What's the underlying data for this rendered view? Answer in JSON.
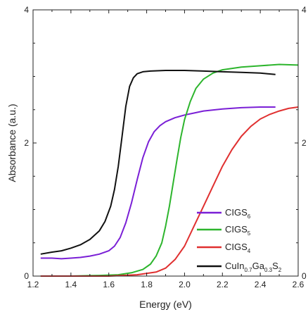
{
  "chart_data": {
    "type": "line",
    "xlabel": "Energy (eV)",
    "ylabel": "Absorbance (a.u.)",
    "xlim": [
      1.2,
      2.6
    ],
    "ylim": [
      0,
      4
    ],
    "x_ticks": [
      "1.2",
      "1.4",
      "1.6",
      "1.8",
      "2.0",
      "2.2",
      "2.4",
      "2.6"
    ],
    "y_ticks_left": [
      "0",
      "2",
      "4"
    ],
    "y_ticks_right": [
      "0",
      "2",
      "4"
    ],
    "grid": false,
    "legend_position": "bottom-right",
    "series": [
      {
        "name": "CIGS6",
        "legend_main": "CIGS",
        "legend_sub": "6",
        "color": "#7a1fd6",
        "x": [
          1.24,
          1.3,
          1.35,
          1.4,
          1.45,
          1.5,
          1.55,
          1.6,
          1.63,
          1.66,
          1.69,
          1.72,
          1.75,
          1.78,
          1.81,
          1.84,
          1.87,
          1.9,
          1.95,
          2.0,
          2.05,
          2.1,
          2.2,
          2.3,
          2.4,
          2.48
        ],
        "y": [
          0.27,
          0.27,
          0.26,
          0.27,
          0.28,
          0.3,
          0.33,
          0.38,
          0.45,
          0.58,
          0.8,
          1.1,
          1.45,
          1.78,
          2.02,
          2.17,
          2.26,
          2.32,
          2.38,
          2.42,
          2.45,
          2.48,
          2.51,
          2.53,
          2.54,
          2.54
        ]
      },
      {
        "name": "CIGS5",
        "legend_main": "CIGS",
        "legend_sub": "5",
        "color": "#2db52d",
        "x": [
          1.24,
          1.4,
          1.55,
          1.65,
          1.72,
          1.78,
          1.82,
          1.85,
          1.88,
          1.9,
          1.92,
          1.94,
          1.96,
          1.98,
          2.0,
          2.03,
          2.06,
          2.1,
          2.15,
          2.2,
          2.3,
          2.4,
          2.5,
          2.6
        ],
        "y": [
          0.0,
          0.0,
          0.01,
          0.02,
          0.05,
          0.1,
          0.18,
          0.3,
          0.5,
          0.75,
          1.05,
          1.4,
          1.75,
          2.08,
          2.35,
          2.62,
          2.82,
          2.96,
          3.05,
          3.1,
          3.14,
          3.16,
          3.18,
          3.17
        ]
      },
      {
        "name": "CIGS4",
        "legend_main": "CIGS",
        "legend_sub": "4",
        "color": "#e03030",
        "x": [
          1.24,
          1.4,
          1.6,
          1.75,
          1.85,
          1.9,
          1.95,
          2.0,
          2.05,
          2.1,
          2.15,
          2.2,
          2.25,
          2.3,
          2.35,
          2.4,
          2.45,
          2.5,
          2.55,
          2.6
        ],
        "y": [
          0.0,
          0.0,
          0.0,
          0.02,
          0.06,
          0.12,
          0.25,
          0.45,
          0.75,
          1.05,
          1.35,
          1.65,
          1.9,
          2.1,
          2.25,
          2.36,
          2.43,
          2.48,
          2.52,
          2.54
        ]
      },
      {
        "name": "CuIn0.7Ga0.3S2",
        "legend_parts": [
          {
            "text": "CuIn",
            "sub": false
          },
          {
            "text": "0.7",
            "sub": true
          },
          {
            "text": "Ga",
            "sub": false
          },
          {
            "text": "0.3",
            "sub": true
          },
          {
            "text": "S",
            "sub": false
          },
          {
            "text": "2",
            "sub": true
          }
        ],
        "color": "#111111",
        "x": [
          1.24,
          1.3,
          1.35,
          1.4,
          1.45,
          1.5,
          1.55,
          1.58,
          1.61,
          1.63,
          1.65,
          1.67,
          1.69,
          1.71,
          1.73,
          1.75,
          1.78,
          1.82,
          1.9,
          2.0,
          2.1,
          2.2,
          2.3,
          2.4,
          2.48
        ],
        "y": [
          0.33,
          0.36,
          0.38,
          0.42,
          0.47,
          0.55,
          0.68,
          0.82,
          1.05,
          1.3,
          1.65,
          2.1,
          2.55,
          2.85,
          2.98,
          3.04,
          3.07,
          3.08,
          3.09,
          3.09,
          3.08,
          3.07,
          3.06,
          3.05,
          3.03
        ]
      }
    ]
  }
}
